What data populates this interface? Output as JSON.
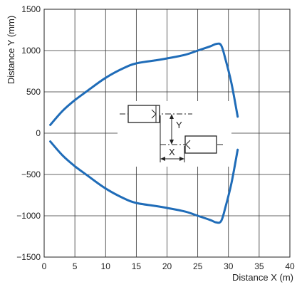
{
  "chart_data": {
    "type": "line",
    "title": "",
    "xlabel": "Distance X (m)",
    "ylabel": "Distance Y (mm)",
    "xlim": [
      0,
      40
    ],
    "ylim": [
      -1500,
      1500
    ],
    "xticks": [
      0,
      5,
      10,
      15,
      20,
      25,
      30,
      35,
      40
    ],
    "yticks": [
      -1500,
      -1000,
      -500,
      0,
      500,
      1000,
      1500
    ],
    "xtick_labels": [
      "0",
      "5",
      "10",
      "15",
      "20",
      "25",
      "30",
      "35",
      "40"
    ],
    "ytick_labels": [
      "−1500",
      "−1000",
      "−500",
      "0",
      "500",
      "1000",
      "1500"
    ],
    "grid": true,
    "series": [
      {
        "color": "#1f6cb8",
        "points": [
          [
            1,
            100
          ],
          [
            3,
            270
          ],
          [
            5,
            400
          ],
          [
            7,
            510
          ],
          [
            10,
            670
          ],
          [
            13,
            790
          ],
          [
            15,
            845
          ],
          [
            18,
            880
          ],
          [
            20,
            905
          ],
          [
            23,
            950
          ],
          [
            25,
            1000
          ],
          [
            27,
            1050
          ],
          [
            28,
            1080
          ],
          [
            28.8,
            1065
          ],
          [
            29.5,
            900
          ],
          [
            30.5,
            600
          ],
          [
            31.5,
            200
          ]
        ]
      },
      {
        "color": "#1f6cb8",
        "points": [
          [
            1,
            -100
          ],
          [
            3,
            -270
          ],
          [
            5,
            -400
          ],
          [
            7,
            -510
          ],
          [
            10,
            -670
          ],
          [
            13,
            -790
          ],
          [
            15,
            -845
          ],
          [
            18,
            -880
          ],
          [
            20,
            -905
          ],
          [
            23,
            -950
          ],
          [
            25,
            -1000
          ],
          [
            27,
            -1050
          ],
          [
            28,
            -1080
          ],
          [
            28.8,
            -1065
          ],
          [
            29.5,
            -900
          ],
          [
            30.5,
            -600
          ],
          [
            31.5,
            -200
          ]
        ]
      }
    ],
    "inset": {
      "x_label": "X",
      "y_label": "Y"
    }
  }
}
